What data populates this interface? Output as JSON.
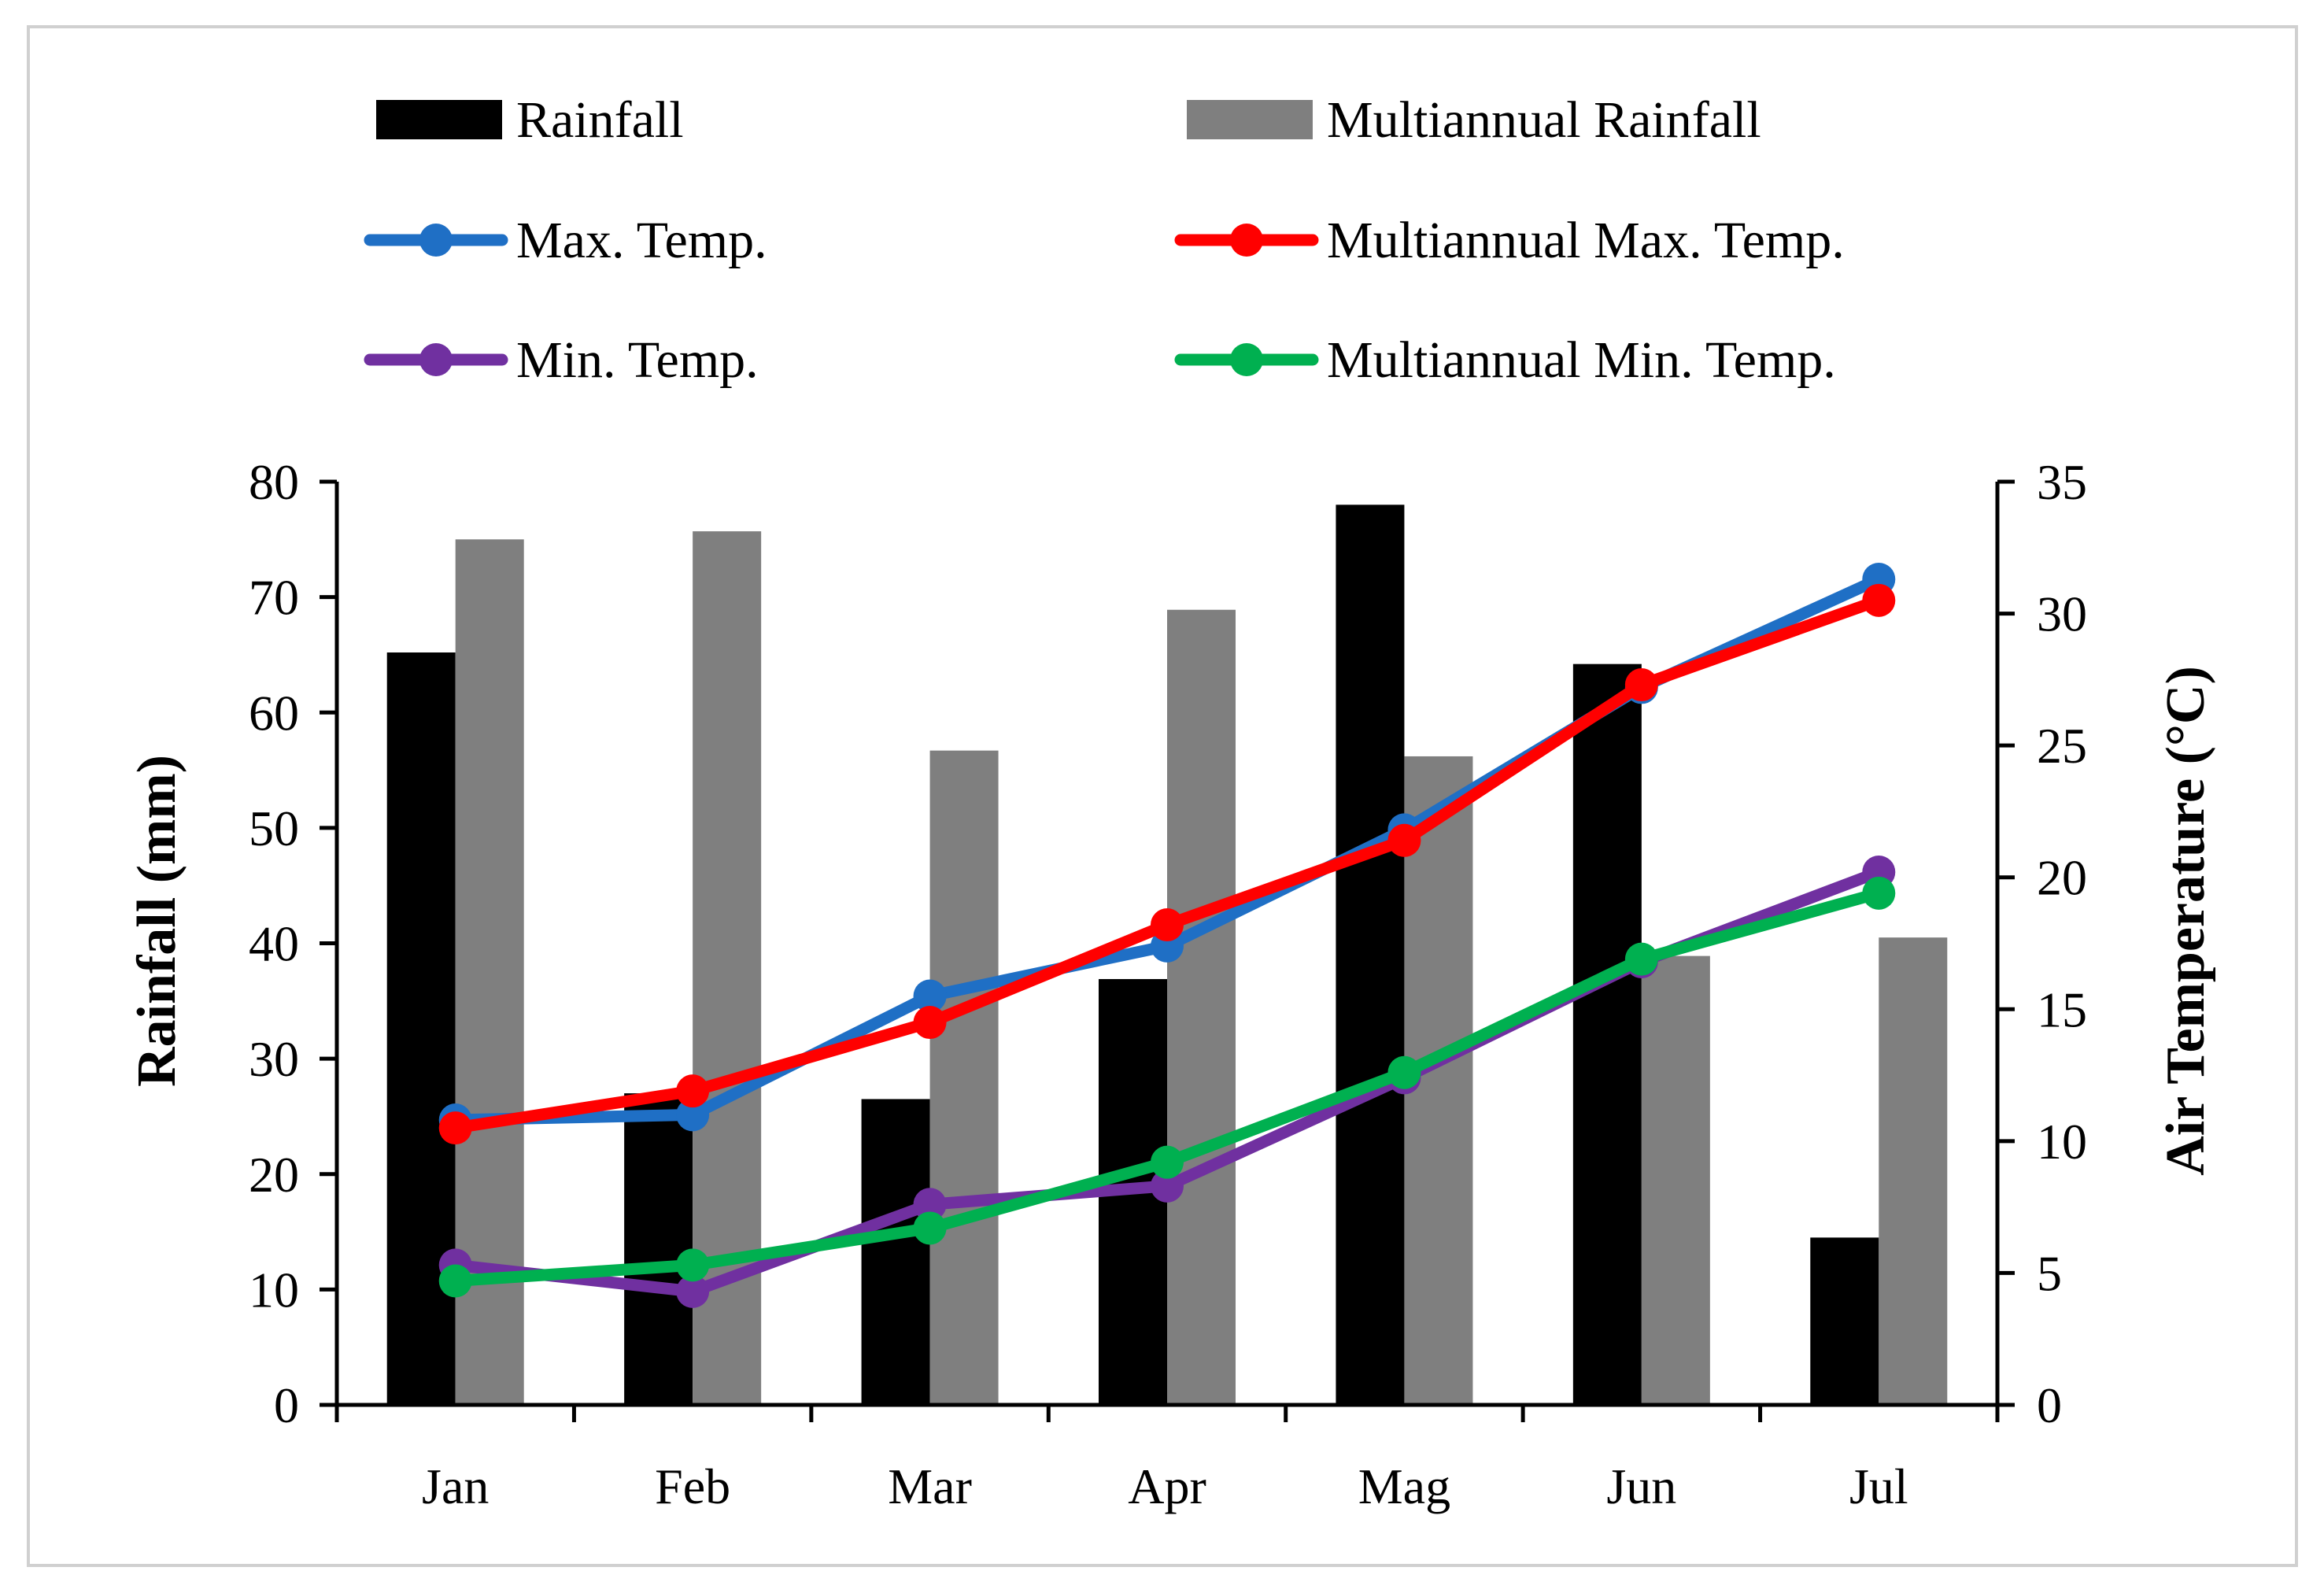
{
  "chart_data": {
    "type": "bar",
    "categories": [
      "Jan",
      "Feb",
      "Mar",
      "Apr",
      "Mag",
      "Jun",
      "Jul"
    ],
    "bars": [
      {
        "name": "Rainfall",
        "color": "#000000",
        "values": [
          65.2,
          27.0,
          26.5,
          36.9,
          78.0,
          64.2,
          14.5
        ]
      },
      {
        "name": "Multiannual Rainfall",
        "color": "#7f7f7f",
        "values": [
          75.0,
          75.7,
          56.7,
          68.9,
          56.2,
          38.9,
          40.5
        ]
      }
    ],
    "lines": [
      {
        "name": "Max. Temp.",
        "color": "#1f6fc5",
        "values": [
          10.8,
          11.0,
          15.5,
          17.4,
          21.8,
          27.2,
          31.3
        ]
      },
      {
        "name": "Multiannual Max. Temp.",
        "color": "#ff0000",
        "values": [
          10.5,
          11.9,
          14.5,
          18.2,
          21.4,
          27.3,
          30.5
        ]
      },
      {
        "name": "Min. Temp.",
        "color": "#7030a0",
        "values": [
          5.3,
          4.3,
          7.6,
          8.3,
          12.4,
          16.8,
          20.2
        ]
      },
      {
        "name": "Multiannual Min. Temp.",
        "color": "#00b050",
        "values": [
          4.7,
          5.3,
          6.7,
          9.2,
          12.6,
          16.9,
          19.4
        ]
      }
    ],
    "y_left": {
      "label": "Rainfall (mm)",
      "min": 0,
      "max": 80,
      "ticks": [
        0,
        10,
        20,
        30,
        40,
        50,
        60,
        70,
        80
      ]
    },
    "y_right": {
      "label": "Air Temperature (°C)",
      "min": 0,
      "max": 35,
      "ticks": [
        0,
        5,
        10,
        15,
        20,
        25,
        30,
        35
      ]
    },
    "legend_position": "top",
    "grid": false
  }
}
